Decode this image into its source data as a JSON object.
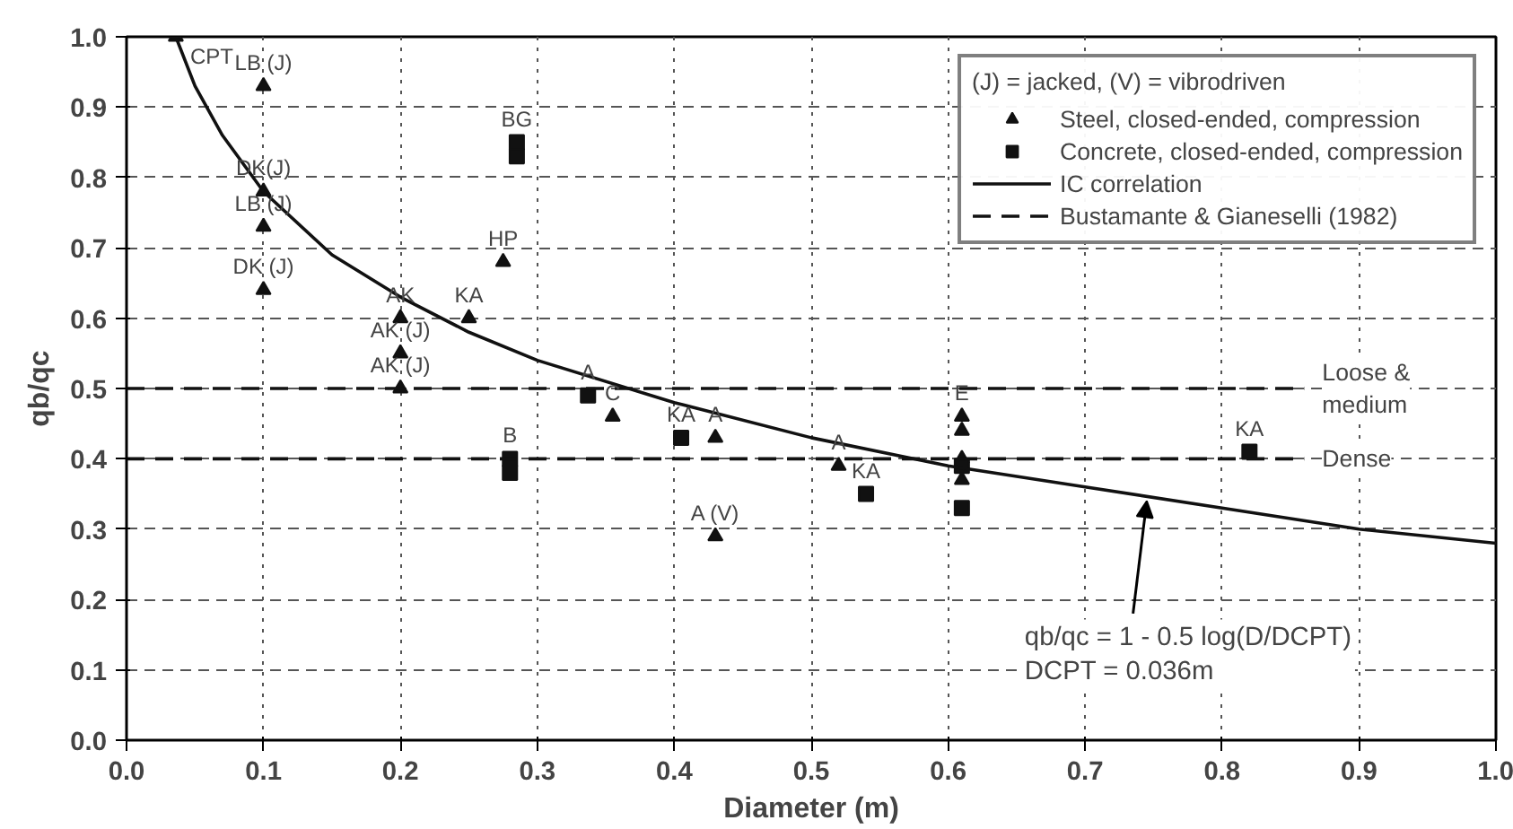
{
  "chart_data": {
    "type": "scatter",
    "xlabel": "Diameter (m)",
    "ylabel": "qb/qc",
    "xlim": [
      0,
      1
    ],
    "ylim": [
      0,
      1
    ],
    "xticks": [
      {
        "value": 0,
        "label": "0.0"
      },
      0.1,
      0.2,
      0.3,
      0.4,
      0.5,
      0.6,
      0.7,
      0.8,
      0.9,
      {
        "value": 1,
        "label": "1.0"
      }
    ],
    "yticks": [
      {
        "value": 0,
        "label": "0.0"
      },
      0.1,
      0.2,
      0.3,
      0.4,
      0.5,
      0.6,
      0.7,
      0.8,
      0.9,
      {
        "value": 1,
        "label": "1.0"
      }
    ],
    "grid": true,
    "legend": "top right",
    "legend_title": "(J) = jacked, (V) = vibrodriven",
    "series": [
      {
        "name": "Steel, closed-ended, compression",
        "marker": "triangle",
        "color": "#111111",
        "x": [
          0.036,
          0.1,
          0.1,
          0.1,
          0.1,
          0.2,
          0.2,
          0.2,
          0.25,
          0.275,
          0.355,
          0.43,
          0.43,
          0.52,
          0.61,
          0.61,
          0.61,
          0.61
        ],
        "values": [
          1.0,
          0.93,
          0.78,
          0.73,
          0.64,
          0.6,
          0.55,
          0.5,
          0.6,
          0.68,
          0.46,
          0.43,
          0.29,
          0.39,
          0.46,
          0.44,
          0.4,
          0.37
        ]
      },
      {
        "name": "Concrete, closed-ended, compression",
        "marker": "square",
        "color": "#111111",
        "x": [
          0.285,
          0.285,
          0.337,
          0.28,
          0.28,
          0.405,
          0.54,
          0.61,
          0.61,
          0.82
        ],
        "values": [
          0.85,
          0.83,
          0.49,
          0.4,
          0.38,
          0.43,
          0.35,
          0.39,
          0.33,
          0.41
        ]
      },
      {
        "name": "IC correlation",
        "type": "line",
        "line_style": "solid",
        "color": "#111111",
        "x": [
          0.036,
          0.05,
          0.07,
          0.1,
          0.15,
          0.2,
          0.25,
          0.3,
          0.4,
          0.5,
          0.6,
          0.7,
          0.8,
          0.9,
          1.0
        ],
        "values": [
          1.0,
          0.93,
          0.86,
          0.78,
          0.69,
          0.63,
          0.58,
          0.54,
          0.48,
          0.43,
          0.39,
          0.36,
          0.33,
          0.3,
          0.28
        ]
      },
      {
        "name": "Bustamante & Gianeselli (1982)",
        "type": "line",
        "line_style": "dashed",
        "color": "#111111",
        "x": [
          0,
          0.86
        ],
        "values": [
          0.5,
          0.5
        ]
      },
      {
        "type": "line",
        "line_style": "dashed",
        "color": "#111111",
        "x": [
          0,
          0.86
        ],
        "values": [
          0.4,
          0.4
        ]
      }
    ],
    "annotations": [
      {
        "text": "CPT",
        "x": 0.036,
        "y": 1.0
      },
      {
        "text": "LB (J)",
        "x": 0.1,
        "y": 0.93
      },
      {
        "text": "DK(J)",
        "x": 0.1,
        "y": 0.78
      },
      {
        "text": "LB (J)",
        "x": 0.1,
        "y": 0.73
      },
      {
        "text": "DK (J)",
        "x": 0.1,
        "y": 0.64
      },
      {
        "text": "AK",
        "x": 0.2,
        "y": 0.6
      },
      {
        "text": "AK (J)",
        "x": 0.2,
        "y": 0.55
      },
      {
        "text": "AK (J)",
        "x": 0.2,
        "y": 0.5
      },
      {
        "text": "KA",
        "x": 0.25,
        "y": 0.6
      },
      {
        "text": "HP",
        "x": 0.275,
        "y": 0.68
      },
      {
        "text": "BG",
        "x": 0.285,
        "y": 0.85
      },
      {
        "text": "A",
        "x": 0.337,
        "y": 0.49
      },
      {
        "text": "C",
        "x": 0.355,
        "y": 0.46
      },
      {
        "text": "B",
        "x": 0.28,
        "y": 0.4
      },
      {
        "text": "KA",
        "x": 0.405,
        "y": 0.43
      },
      {
        "text": "A",
        "x": 0.43,
        "y": 0.43
      },
      {
        "text": "A (V)",
        "x": 0.43,
        "y": 0.29
      },
      {
        "text": "A",
        "x": 0.52,
        "y": 0.39
      },
      {
        "text": "KA",
        "x": 0.54,
        "y": 0.35
      },
      {
        "text": "E",
        "x": 0.61,
        "y": 0.46
      },
      {
        "text": "KA",
        "x": 0.82,
        "y": 0.41
      },
      {
        "text": "Loose &\nmedium",
        "x": 0.86,
        "y": 0.5
      },
      {
        "text": "Dense",
        "x": 0.86,
        "y": 0.4
      },
      {
        "text": "qb/qc = 1 - 0.5 log(D/DCPT)\nDCPT = 0.036m",
        "x": 0.745,
        "y": 0.35
      }
    ]
  }
}
